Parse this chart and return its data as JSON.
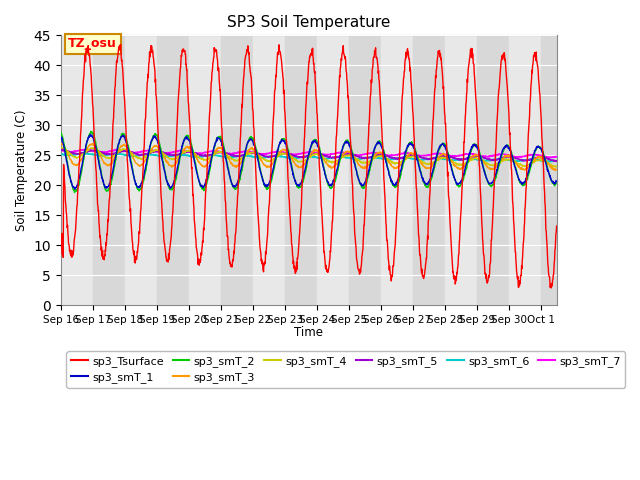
{
  "title": "SP3 Soil Temperature",
  "xlabel": "Time",
  "ylabel": "Soil Temperature (C)",
  "ylim": [
    0,
    45
  ],
  "yticks": [
    0,
    5,
    10,
    15,
    20,
    25,
    30,
    35,
    40,
    45
  ],
  "annotation": "TZ_osu",
  "series_colors": {
    "sp3_Tsurface": "#ff0000",
    "sp3_smT_1": "#0000cc",
    "sp3_smT_2": "#00cc00",
    "sp3_smT_3": "#ff9900",
    "sp3_smT_4": "#cccc00",
    "sp3_smT_5": "#9900cc",
    "sp3_smT_6": "#00cccc",
    "sp3_smT_7": "#ff00ff"
  },
  "bg_color": "#ffffff",
  "band_colors": [
    "#e8e8e8",
    "#d8d8d8"
  ],
  "grid_color": "#ffffff",
  "xlim": [
    0,
    15.5
  ],
  "total_days": 15.5,
  "dt_hours": 0.25
}
